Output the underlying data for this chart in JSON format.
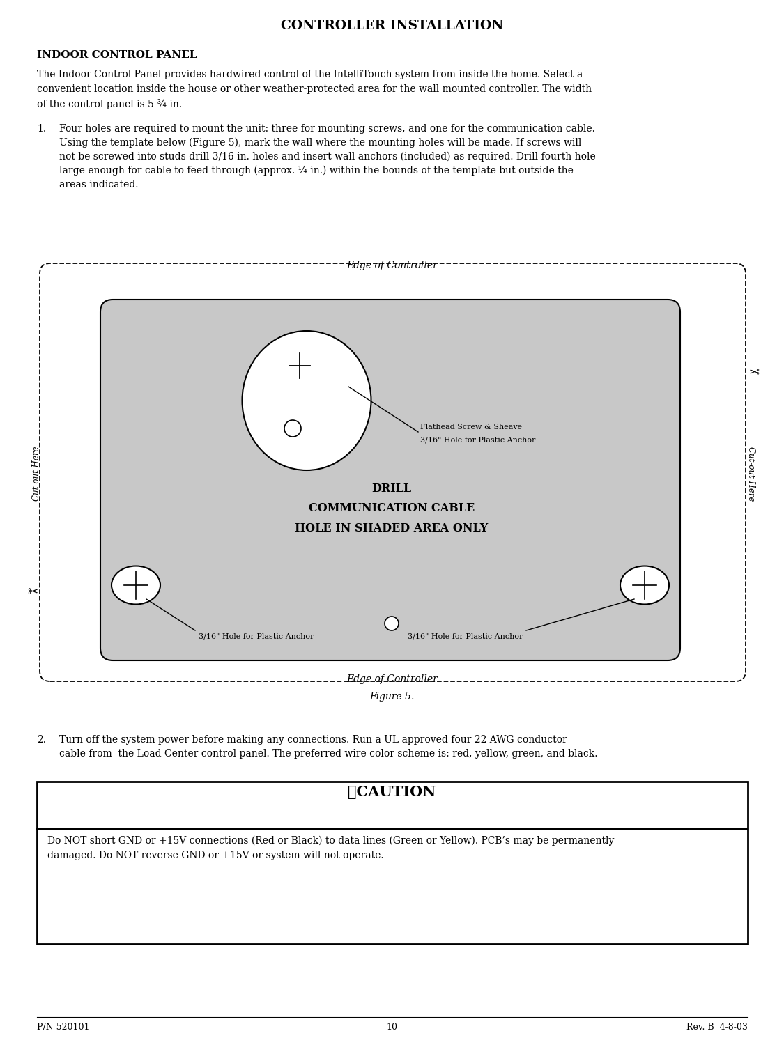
{
  "title": "CONTROLLER INSTALLATION",
  "section_heading": "INDOOR CONTROL PANEL",
  "body_text": "The Indoor Control Panel provides hardwired control of the IntelliTouch system from inside the home. Select a\nconvenient location inside the house or other weather-protected area for the wall mounted controller. The width\nof the control panel is 5-¾ in.",
  "item1_line1": "Four holes are required to mount the unit: three for mounting screws, and one for the communication cable.",
  "item1_line2": "Using the template below (Figure 5), mark the wall where the mounting holes will be made. If screws will",
  "item1_line3": "not be screwed into studs drill 3/16 in. holes and insert wall anchors (included) as required. Drill fourth hole",
  "item1_line4": "large enough for cable to feed through (approx. ¼ in.) within the bounds of the template but outside the",
  "item1_line5": "areas indicated.",
  "item2_line1": "Turn off the system power before making any connections. Run a UL approved four 22 AWG conductor",
  "item2_line2": "cable from  the Load Center control panel. The preferred wire color scheme is: red, yellow, green, and black.",
  "edge_top_label": "Edge of Controller",
  "edge_bottom_label": "Edge of Controller",
  "cutout_left": "Cut-out Here",
  "cutout_right": "Cut-out Here",
  "drill_text": "DRILL\nCOMMUNICATION CABLE\nHOLE IN SHADED AREA ONLY",
  "flathead_label1": "Flathead Screw & Sheave",
  "flathead_label2": "3/16\" Hole for Plastic Anchor",
  "anchor_bottom_left": "3/16\" Hole for Plastic Anchor",
  "anchor_bottom_right": "3/16\" Hole for Plastic Anchor",
  "figure_label": "Figure 5.",
  "caution_text": "Do NOT short GND or +15V connections (Red or Black) to data lines (Green or Yellow). PCB’s may be permanently\ndamaged. Do NOT reverse GND or +15V or system will not operate.",
  "footer_left": "P/N 520101",
  "footer_center": "10",
  "footer_right": "Rev. B  4-8-03",
  "bg_color": "#ffffff",
  "gray_color": "#c8c8c8",
  "text_color": "#000000"
}
